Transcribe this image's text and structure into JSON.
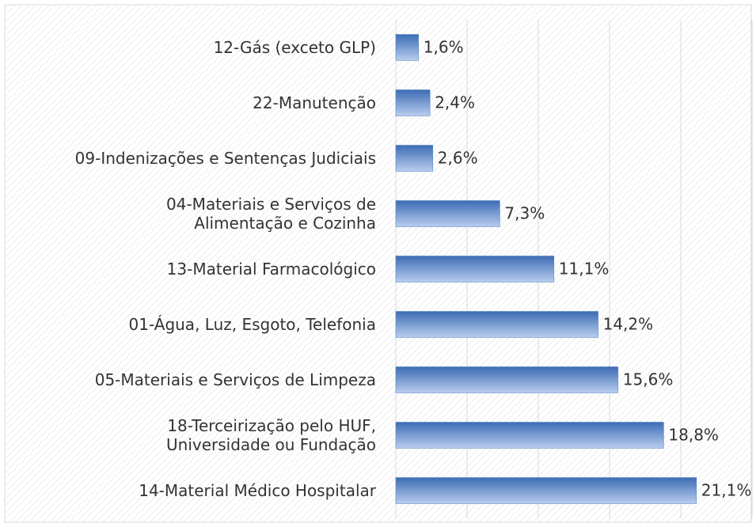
{
  "chart_data": {
    "type": "bar",
    "orientation": "horizontal",
    "categories": [
      "12-Gás (exceto GLP)",
      "22-Manutenção",
      "09-Indenizações e Sentenças Judiciais",
      "04-Materiais e Serviços de\nAlimentação e Cozinha",
      "13-Material Farmacológico",
      "01-Água, Luz, Esgoto, Telefonia",
      "05-Materiais e Serviços de Limpeza",
      "18-Terceirização pelo HUF,\nUniversidade ou Fundação",
      "14-Material Médico Hospitalar"
    ],
    "values": [
      1.6,
      2.4,
      2.6,
      7.3,
      11.1,
      14.2,
      15.6,
      18.8,
      21.1
    ],
    "value_labels": [
      "1,6%",
      "2,4%",
      "2,6%",
      "7,3%",
      "11,1%",
      "14,2%",
      "15,6%",
      "18,8%",
      "21,1%"
    ],
    "color": "#4f81bd",
    "xlim": [
      0,
      25
    ],
    "xticks": [
      0,
      5,
      10,
      15,
      20,
      25
    ],
    "grid": true
  }
}
